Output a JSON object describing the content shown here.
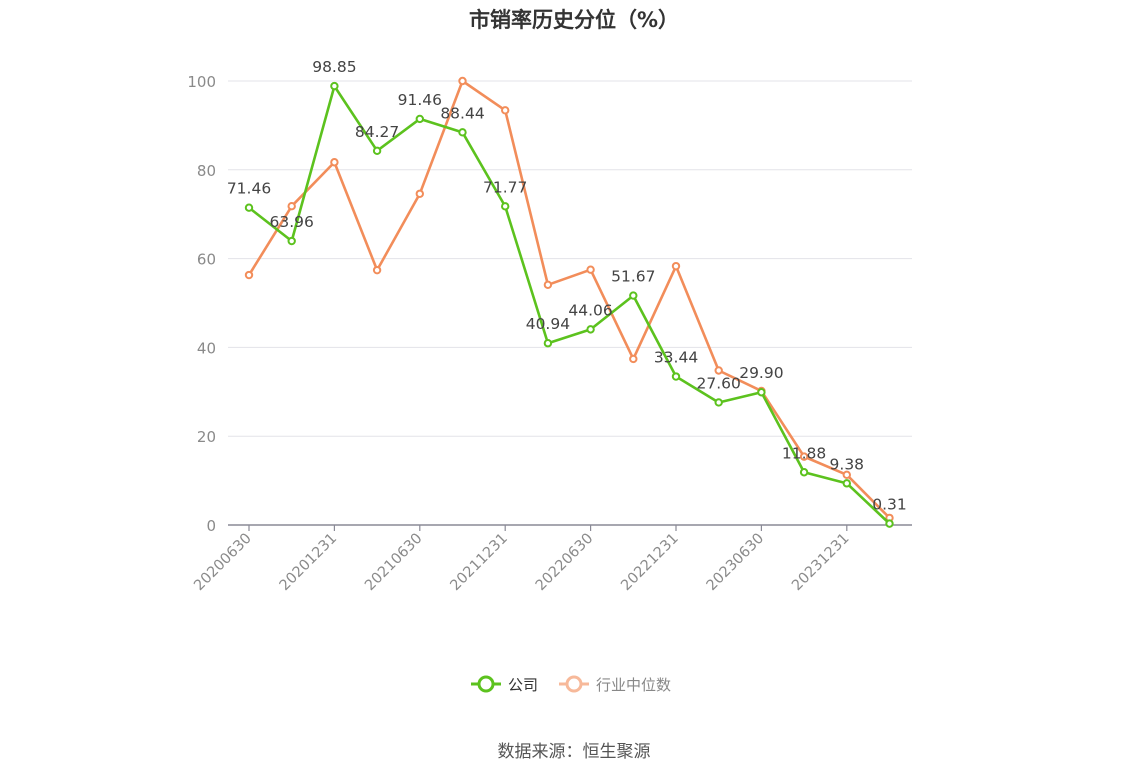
{
  "colors": {
    "company": "#5cc21e",
    "industry": "#f28d5a"
  },
  "chart_data": {
    "type": "line",
    "title": "市销率历史分位（%）",
    "xlabel": "",
    "ylabel": "",
    "ylim": [
      0,
      100
    ],
    "yticks": [
      "0",
      "20",
      "40",
      "60",
      "80",
      "100"
    ],
    "x": [
      "20200630",
      "20200930",
      "20201231",
      "20210331",
      "20210630",
      "20210930",
      "20211231",
      "20220331",
      "20220630",
      "20220930",
      "20221231",
      "20230331",
      "20230630",
      "20230930",
      "20231231",
      "20240331"
    ],
    "xtick_labels": [
      "20200630",
      "20201231",
      "20210630",
      "20211231",
      "20220630",
      "20221231",
      "20230630",
      "20231231"
    ],
    "grid": "horizontal",
    "legend_position": "bottom-center",
    "series": [
      {
        "name": "公司",
        "values": [
          71.46,
          63.96,
          98.85,
          84.27,
          91.46,
          88.44,
          71.77,
          40.94,
          44.06,
          51.67,
          33.44,
          27.6,
          29.9,
          11.88,
          9.38,
          0.31
        ],
        "labels": [
          "71.46",
          "63.96",
          "98.85",
          "84.27",
          "91.46",
          "88.44",
          "71.77",
          "40.94",
          "44.06",
          "51.67",
          "33.44",
          "27.60",
          "29.90",
          "11.88",
          "9.38",
          "0.31"
        ]
      },
      {
        "name": "行业中位数",
        "values": [
          56.3,
          71.8,
          81.7,
          57.4,
          74.6,
          100.0,
          93.4,
          54.1,
          57.5,
          37.4,
          58.3,
          34.8,
          30.2,
          15.4,
          11.3,
          1.6
        ]
      }
    ]
  },
  "legend": {
    "company_label": "公司",
    "industry_label": "行业中位数"
  },
  "source": "数据来源：恒生聚源"
}
